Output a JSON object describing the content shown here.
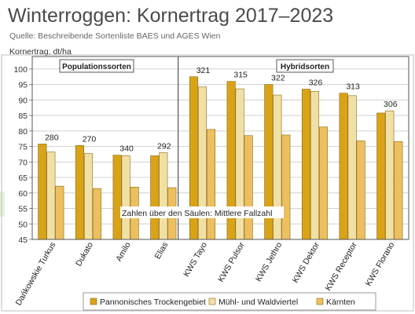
{
  "title": "Winterroggen: Kornertrag 2017–2023",
  "subtitle": "Quelle: Beschreibende Sortenliste BAES und AGES Wien",
  "chart_data": {
    "type": "bar",
    "ylabel": "Kornertrag, dt/ha",
    "ylim": [
      45,
      102
    ],
    "yticks": [
      45,
      50,
      55,
      60,
      65,
      70,
      75,
      80,
      85,
      90,
      95,
      100
    ],
    "groups": [
      {
        "label": "Populationssorten",
        "categories": [
          "Dańkowskie Turkus",
          "Dukato",
          "Amilo",
          "Elias"
        ]
      },
      {
        "label": "Hybridsorten",
        "categories": [
          "KWS Tayo",
          "KWS Pulsor",
          "KWS Jethro",
          "KWS Dektor",
          "KWS Receptor",
          "KWS Florano"
        ]
      }
    ],
    "categories": [
      "Dańkowskie Turkus",
      "Dukato",
      "Amilo",
      "Elias",
      "KWS Tayo",
      "KWS Pulsor",
      "KWS Jethro",
      "KWS Dektor",
      "KWS Receptor",
      "KWS Florano"
    ],
    "series": [
      {
        "name": "Pannonisches Trockengebiet",
        "color": "#d9a318",
        "values": [
          75.8,
          75.3,
          72.2,
          72.0,
          97.5,
          96.0,
          95.0,
          93.5,
          92.2,
          85.8
        ]
      },
      {
        "name": "Mühl- und Waldviertel",
        "color": "#f1e0a6",
        "values": [
          73.2,
          72.7,
          72.0,
          73.0,
          94.2,
          93.6,
          91.6,
          92.8,
          91.4,
          86.5
        ]
      },
      {
        "name": "Kärnten",
        "color": "#ecbf61",
        "values": [
          62.2,
          61.4,
          61.9,
          61.7,
          80.5,
          78.5,
          78.7,
          81.3,
          76.8,
          76.6
        ]
      }
    ],
    "falling_numbers": [
      "280",
      "270",
      "340",
      "292",
      "321",
      "315",
      "322",
      "326",
      "313",
      "306"
    ],
    "annotation": "Zahlen über den Säulen: Mittlere Fallzahl",
    "grid": true,
    "legend": "bottom"
  }
}
